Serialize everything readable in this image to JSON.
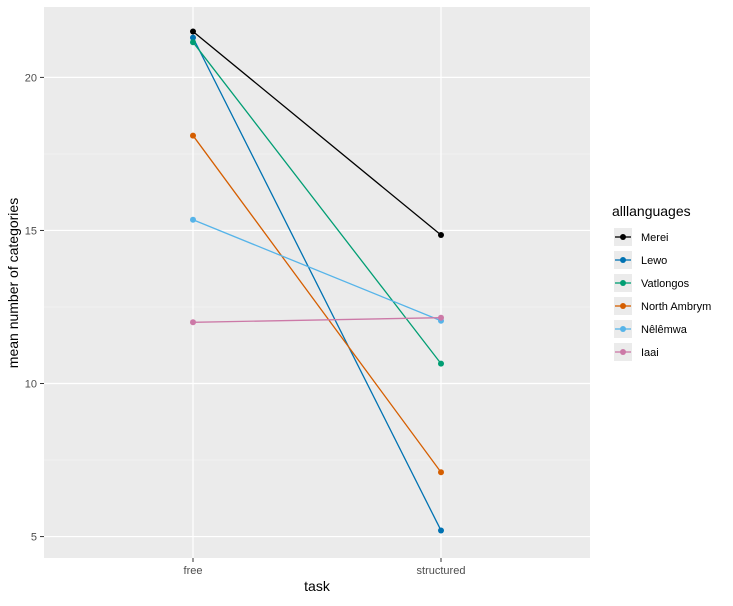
{
  "chart_data": {
    "type": "line",
    "categories": [
      "free",
      "structured"
    ],
    "xlabel": "task",
    "ylabel": "mean number of categories",
    "ylim": [
      4.3,
      22.3
    ],
    "yticks": [
      5,
      10,
      15,
      20
    ],
    "grid": true,
    "legend": {
      "title": "alllanguages",
      "position": "right"
    },
    "series": [
      {
        "name": "Merei",
        "color": "#000000",
        "values": [
          21.5,
          14.85
        ]
      },
      {
        "name": "Lewo",
        "color": "#0072B2",
        "values": [
          21.3,
          5.2
        ]
      },
      {
        "name": "Vatlongos",
        "color": "#009E73",
        "values": [
          21.15,
          10.65
        ]
      },
      {
        "name": "North Ambrym",
        "color": "#D55E00",
        "values": [
          18.1,
          7.1
        ]
      },
      {
        "name": "Nêlêmwa",
        "color": "#56B4E9",
        "values": [
          15.35,
          12.05
        ]
      },
      {
        "name": "Iaai",
        "color": "#CC79A7",
        "values": [
          12.0,
          12.15
        ]
      }
    ]
  }
}
